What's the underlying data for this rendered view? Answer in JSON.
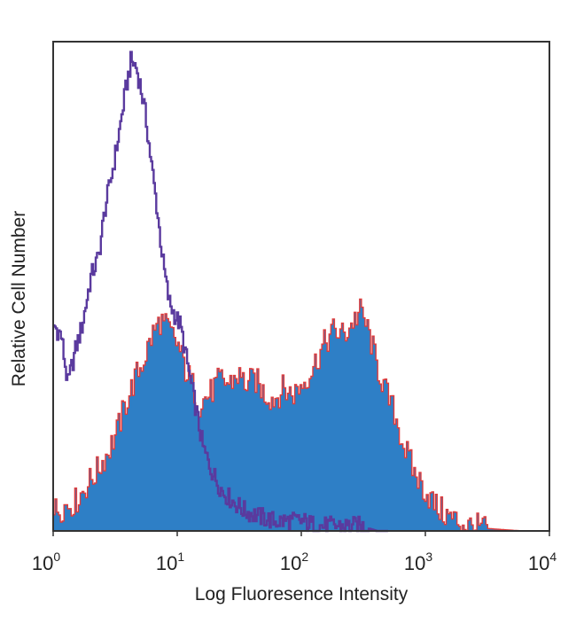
{
  "chart_data": {
    "type": "area",
    "xlabel": "Log Fluoresence Intensity",
    "ylabel": "Relative Cell Number",
    "x_scale": "log",
    "xlim": [
      1,
      10000
    ],
    "ylim": [
      0,
      100
    ],
    "grid": false,
    "legend": "none",
    "x_ticks": [
      {
        "base": "10",
        "exp": "0",
        "value": 1
      },
      {
        "base": "10",
        "exp": "1",
        "value": 10
      },
      {
        "base": "10",
        "exp": "2",
        "value": 100
      },
      {
        "base": "10",
        "exp": "3",
        "value": 1000
      },
      {
        "base": "10",
        "exp": "4",
        "value": 10000
      }
    ],
    "series": [
      {
        "style": "outline",
        "color": "#5a3a9e",
        "x": [
          1,
          1.15,
          1.3,
          1.5,
          1.7,
          2.0,
          2.3,
          2.6,
          3.0,
          3.4,
          3.8,
          4.2,
          4.6,
          5.0,
          5.5,
          6.0,
          6.8,
          7.6,
          8.5,
          9.5,
          10.5,
          12,
          14,
          16,
          19,
          23,
          28,
          35,
          45,
          60,
          80,
          100,
          130,
          170,
          220,
          300,
          400,
          500
        ],
        "y": [
          42,
          40,
          30,
          37,
          42,
          52,
          56,
          66,
          74,
          82,
          90,
          96,
          95,
          91,
          85,
          77,
          66,
          55,
          47,
          44,
          42,
          34,
          25,
          17,
          12,
          8,
          6,
          4,
          3,
          2,
          2,
          2,
          1,
          1,
          1,
          1,
          0,
          0
        ]
      },
      {
        "style": "filled",
        "fill_color": "#2e7fc6",
        "edge_color": "#e03b3b",
        "x": [
          1,
          1.2,
          1.5,
          1.8,
          2.2,
          2.7,
          3.2,
          3.8,
          4.5,
          5.3,
          6.2,
          7.2,
          8.5,
          10,
          11.5,
          13,
          15,
          18,
          22,
          26,
          30,
          36,
          42,
          50,
          60,
          70,
          85,
          100,
          120,
          150,
          180,
          220,
          260,
          300,
          350,
          400,
          480,
          560,
          650,
          800,
          1000,
          1200,
          1500,
          1800,
          2200,
          2800,
          3500,
          4500,
          6000
        ],
        "y": [
          4,
          5,
          6,
          9,
          12,
          16,
          20,
          26,
          31,
          35,
          40,
          43,
          41,
          38,
          33,
          30,
          26,
          28,
          31,
          30,
          32,
          30,
          31,
          28,
          27,
          29,
          28,
          30,
          33,
          38,
          41,
          40,
          43,
          45,
          40,
          34,
          28,
          24,
          18,
          12,
          8,
          5,
          3,
          2,
          1,
          0.6,
          0.4,
          0.2,
          0
        ]
      }
    ]
  }
}
